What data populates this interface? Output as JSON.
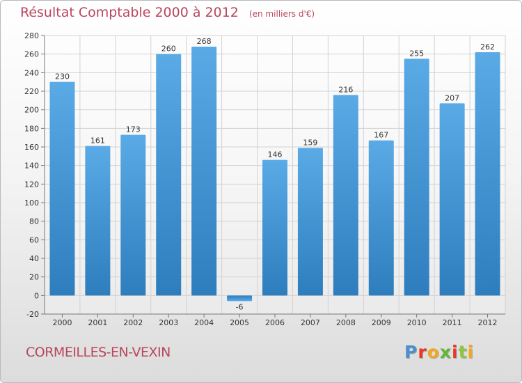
{
  "title": "Résultat Comptable 2000 à 2012",
  "subtitle": "(en milliers d'€)",
  "commune": "CORMEILLES-EN-VEXIN",
  "brand": {
    "letters": [
      "P",
      "r",
      "o",
      "x",
      "i",
      "t",
      "i"
    ],
    "colors": [
      "#4a8fd0",
      "#e6392b",
      "#f2a81d",
      "#64b437",
      "#e6392b",
      "#8dc63f",
      "#f2a81d"
    ]
  },
  "colors": {
    "accent": "#b9465c",
    "bar_light": "#5aaae6",
    "bar_dark": "#2e7dbd",
    "grid": "#d2d2d2"
  },
  "chart_data": {
    "type": "bar",
    "title": "Résultat Comptable 2000 à 2012",
    "subtitle": "(en milliers d'€)",
    "categories": [
      "2000",
      "2001",
      "2002",
      "2003",
      "2004",
      "2005",
      "2006",
      "2007",
      "2008",
      "2009",
      "2010",
      "2011",
      "2012"
    ],
    "values": [
      230,
      161,
      173,
      260,
      268,
      -6,
      146,
      159,
      216,
      167,
      255,
      207,
      262
    ],
    "ylim": [
      -20,
      280
    ],
    "yticks": [
      -20,
      0,
      20,
      40,
      60,
      80,
      100,
      120,
      140,
      160,
      180,
      200,
      220,
      240,
      260,
      280
    ],
    "grid": true
  }
}
